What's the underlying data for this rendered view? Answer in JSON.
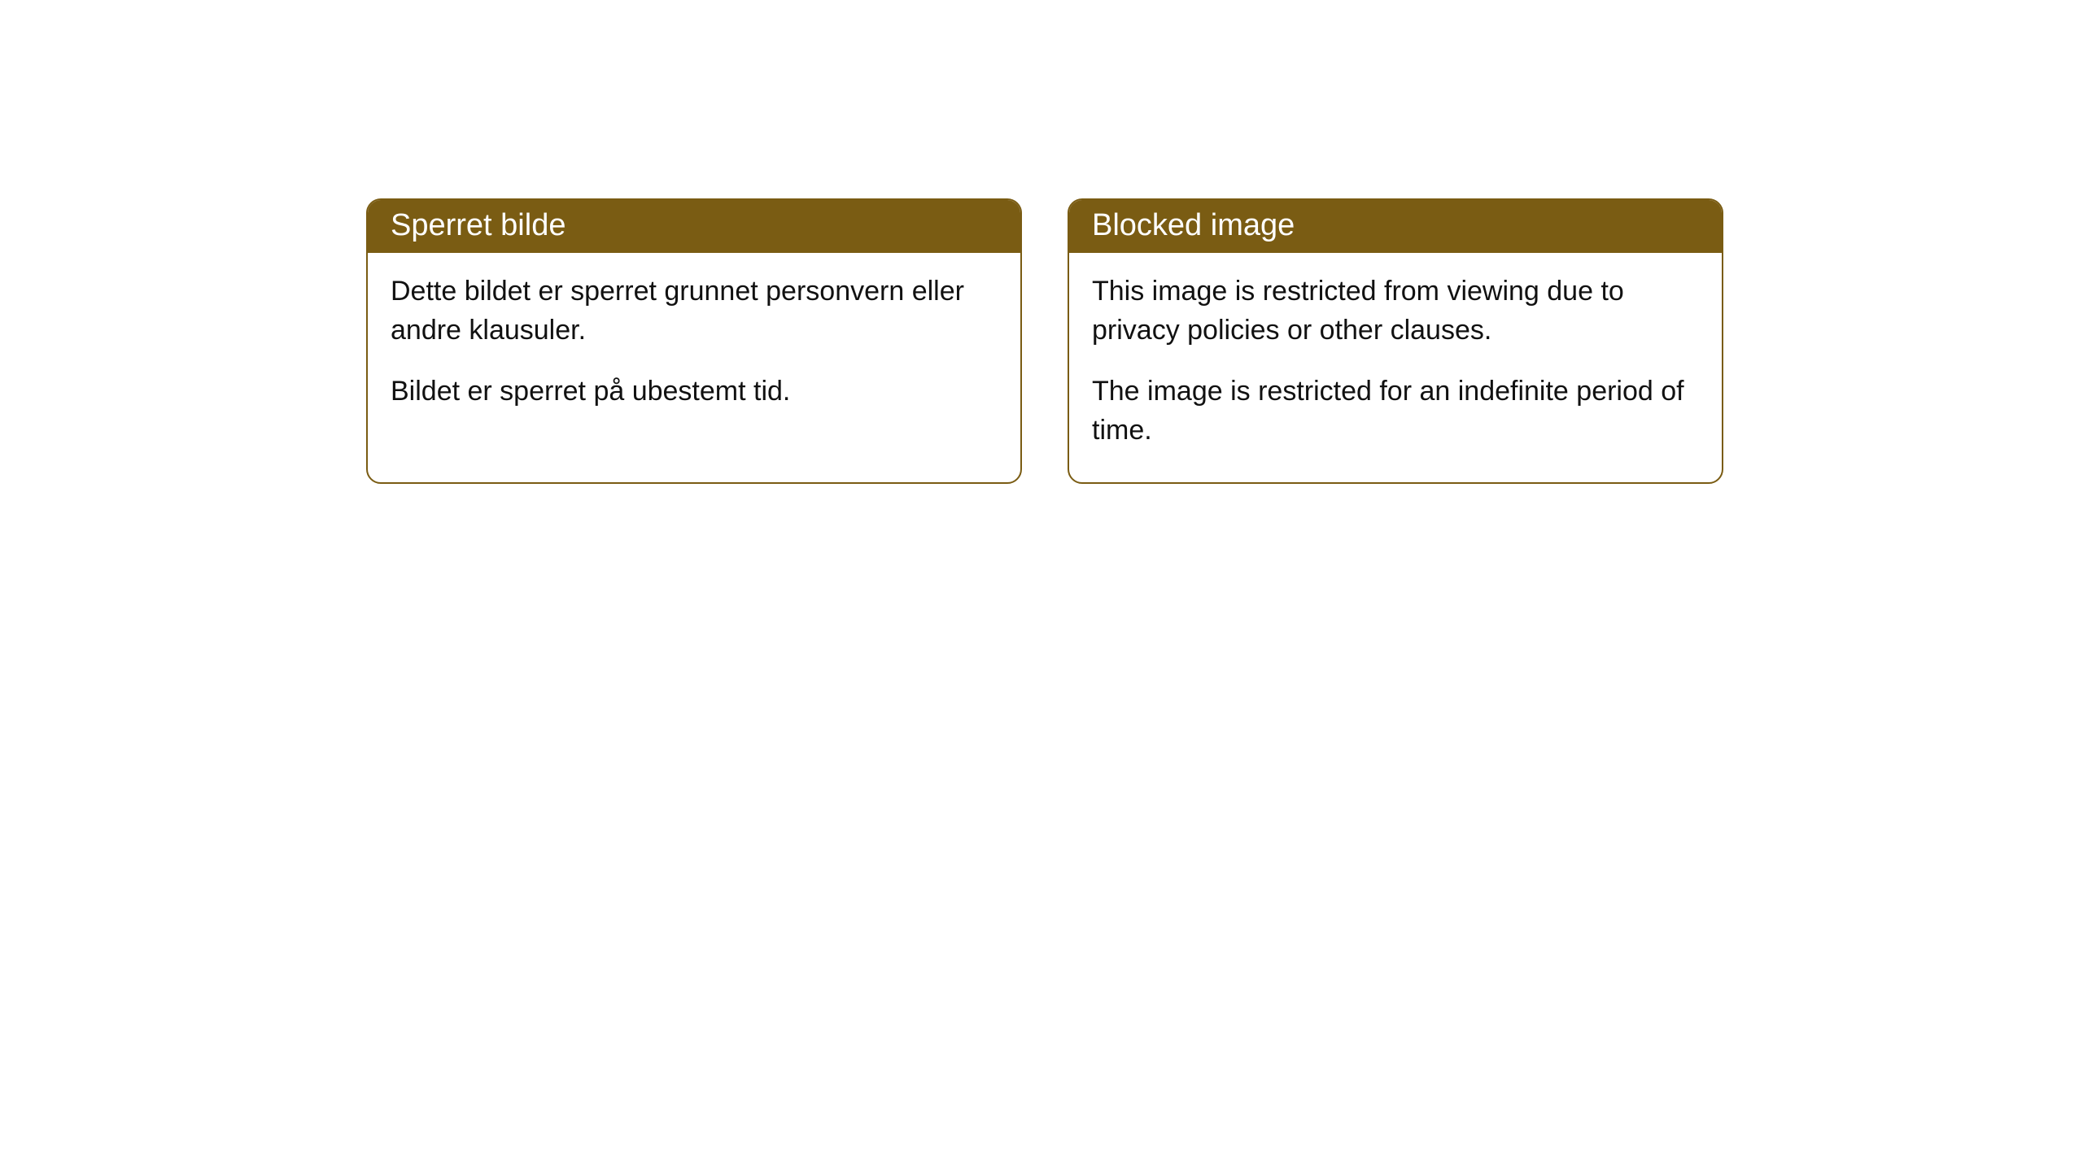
{
  "cards": [
    {
      "title": "Sperret bilde",
      "paragraph1": "Dette bildet er sperret grunnet personvern eller andre klausuler.",
      "paragraph2": "Bildet er sperret på ubestemt tid."
    },
    {
      "title": "Blocked image",
      "paragraph1": "This image is restricted from viewing due to privacy policies or other clauses.",
      "paragraph2": "The image is restricted for an indefinite period of time."
    }
  ],
  "style": {
    "header_bg_color": "#7a5c13",
    "header_text_color": "#ffffff",
    "border_color": "#7a5c13",
    "body_text_color": "#111111",
    "background_color": "#ffffff",
    "border_radius": 18,
    "title_fontsize": 38,
    "body_fontsize": 34
  }
}
